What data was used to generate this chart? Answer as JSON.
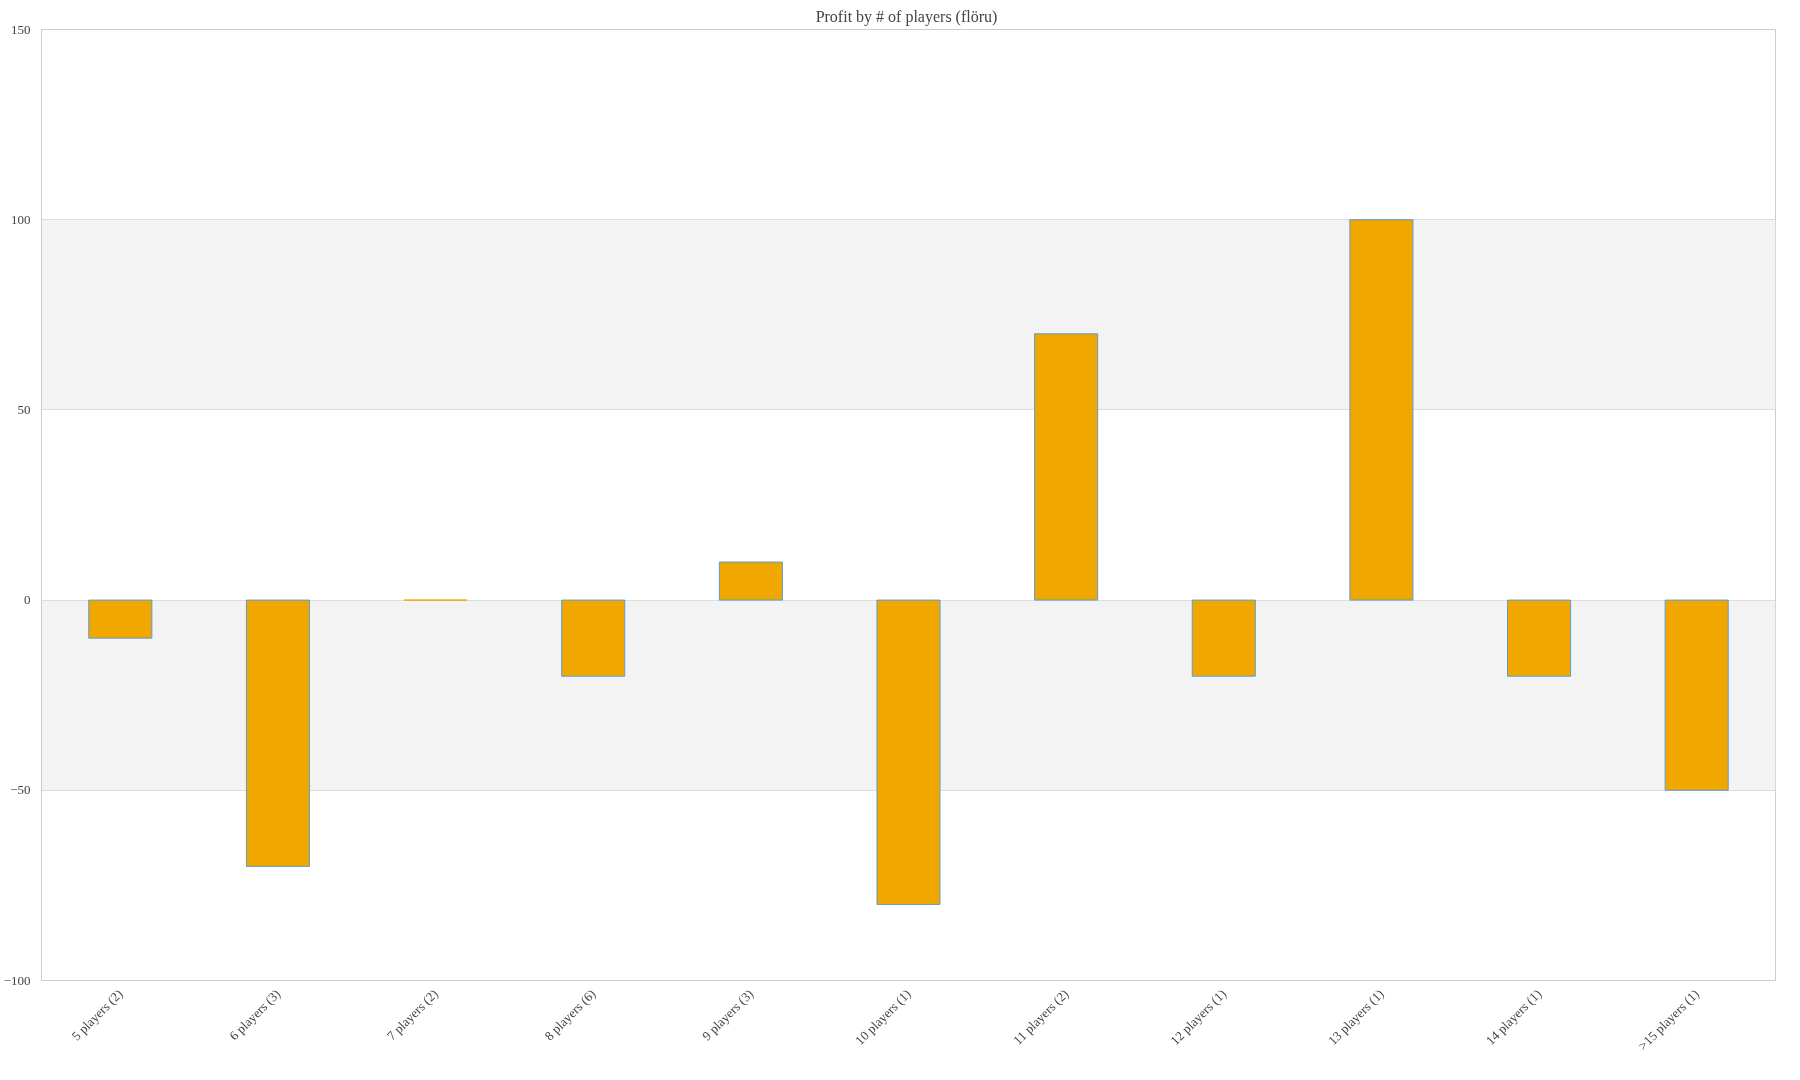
{
  "chart_data": {
    "type": "bar",
    "title": "Profit by # of players  (flöru)",
    "categories": [
      "5 players (2)",
      "6 players (3)",
      "7 players (2)",
      "8 players (6)",
      "9 players (3)",
      "10 players (1)",
      "11 players (2)",
      "12 players (1)",
      "13 players (1)",
      "14 players (1)",
      ">15 players (1)"
    ],
    "values": [
      -10,
      -70,
      0,
      -20,
      10,
      -80,
      70,
      -20,
      100,
      -20,
      -50
    ],
    "color": "#f0a800",
    "ylim": [
      -100,
      150
    ],
    "yticks": [
      -100,
      -50,
      0,
      50,
      100,
      150
    ],
    "grid": "y"
  }
}
